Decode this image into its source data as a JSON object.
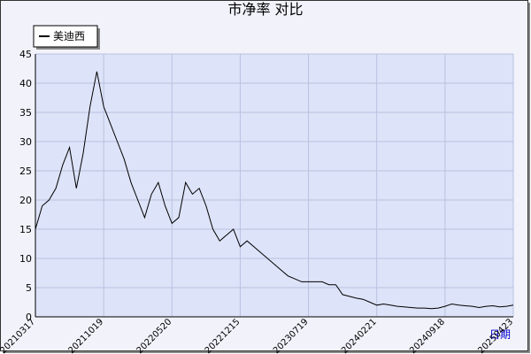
{
  "chart_data": {
    "type": "line",
    "title": "市净率 对比",
    "x_label": "日期",
    "categories": [
      "20210317",
      null,
      null,
      null,
      null,
      null,
      null,
      null,
      null,
      null,
      "20211019",
      null,
      null,
      null,
      null,
      null,
      null,
      null,
      null,
      null,
      "20220520",
      null,
      null,
      null,
      null,
      null,
      null,
      null,
      null,
      null,
      "20221215",
      null,
      null,
      null,
      null,
      null,
      null,
      null,
      null,
      null,
      "20230719",
      null,
      null,
      null,
      null,
      null,
      null,
      null,
      null,
      null,
      "20240221",
      null,
      null,
      null,
      null,
      null,
      null,
      null,
      null,
      null,
      "20240918",
      null,
      null,
      null,
      null,
      null,
      null,
      null,
      null,
      null,
      "20250423"
    ],
    "series": [
      {
        "name": "美迪西",
        "color": "#000000",
        "values": [
          15,
          19,
          20,
          22,
          26,
          29,
          22,
          28,
          36,
          42,
          36,
          33,
          30,
          27,
          23,
          20,
          17,
          21,
          23,
          19,
          16,
          17,
          23,
          21,
          22,
          19,
          15,
          13,
          14,
          15,
          12,
          13,
          12,
          11,
          10,
          9,
          8,
          7,
          6.5,
          6,
          6,
          6,
          6,
          5.5,
          5.5,
          3.8,
          3.5,
          3.2,
          3,
          2.5,
          2,
          2.2,
          2,
          1.8,
          1.7,
          1.6,
          1.5,
          1.5,
          1.4,
          1.5,
          1.8,
          2.2,
          2,
          1.9,
          1.8,
          1.6,
          1.8,
          1.9,
          1.7,
          1.8,
          2
        ]
      }
    ],
    "ylim": [
      0,
      45
    ],
    "yticks": [
      0,
      5,
      10,
      15,
      20,
      25,
      30,
      35,
      40,
      45
    ],
    "grid": true
  }
}
